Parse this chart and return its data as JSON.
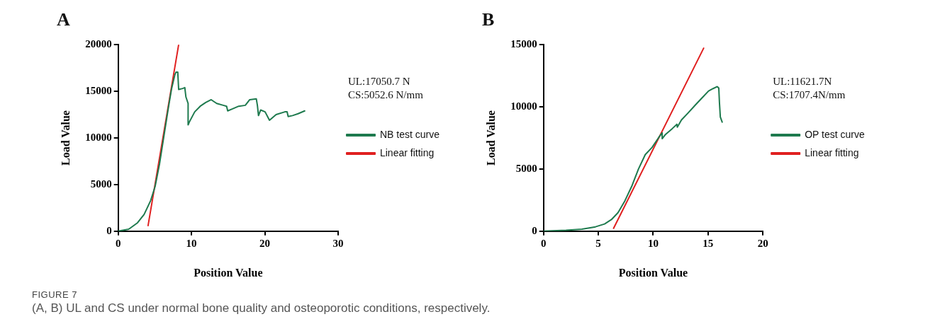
{
  "chart_data": [
    {
      "type": "line",
      "title": "A",
      "xlabel": "Position Value",
      "ylabel": "Load Value",
      "xlim": [
        0,
        30
      ],
      "xticks": [
        0,
        10,
        20,
        30
      ],
      "ylim": [
        0,
        20000
      ],
      "yticks": [
        0,
        5000,
        10000,
        15000,
        20000
      ],
      "legend": "right",
      "marker": "none",
      "grid": false,
      "annotations": [
        "UL:17050.7 N",
        "CS:5052.6 N/mm"
      ],
      "series": [
        {
          "name": "NB test curve",
          "color": "#1e7a4e",
          "x": [
            0,
            1.44,
            2.64,
            3.54,
            4.44,
            5.04,
            5.64,
            6.24,
            6.84,
            7.29,
            7.74,
            7.89,
            8.13,
            8.25,
            8.79,
            9.09,
            9.24,
            9.54,
            9.54,
            9.7,
            10.44,
            11.19,
            11.94,
            12.69,
            13.44,
            14.34,
            14.79,
            14.94,
            15.54,
            16.44,
            17.34,
            17.94,
            18.84,
            18.99,
            19.14,
            19.44,
            20.04,
            20.64,
            21.54,
            22.74,
            23.04,
            23.19,
            23.79,
            24.54,
            25.44
          ],
          "values": [
            0,
            210,
            900,
            1800,
            3300,
            4800,
            7200,
            10200,
            13200,
            15300,
            16800,
            17050,
            17050,
            15200,
            15300,
            15400,
            14400,
            13700,
            11400,
            11700,
            12800,
            13400,
            13800,
            14100,
            13700,
            13500,
            13400,
            12900,
            13100,
            13400,
            13500,
            14100,
            14200,
            13500,
            12400,
            13000,
            12800,
            11900,
            12500,
            12800,
            12800,
            12300,
            12400,
            12600,
            12900
          ]
        },
        {
          "name": "Linear fitting",
          "color": "#e02020",
          "type": "line",
          "x": [
            4.08,
            8.25
          ],
          "values": [
            600,
            20000
          ]
        }
      ]
    },
    {
      "type": "line",
      "title": "B",
      "xlabel": "Position Value",
      "ylabel": "Load Value",
      "xlim": [
        0,
        20
      ],
      "xticks": [
        0,
        5,
        10,
        15,
        20
      ],
      "ylim": [
        0,
        15000
      ],
      "yticks": [
        0,
        5000,
        10000,
        15000
      ],
      "legend": "right",
      "marker": "none",
      "grid": false,
      "annotations": [
        "UL:11621.7N",
        "CS:1707.4N/mm"
      ],
      "series": [
        {
          "name": "OP test curve",
          "color": "#1e7a4e",
          "x": [
            0,
            2.06,
            3.5,
            4.74,
            5.57,
            6.19,
            6.8,
            7.42,
            8.04,
            8.66,
            9.28,
            9.9,
            10.52,
            10.82,
            10.82,
            11.13,
            11.75,
            12.16,
            12.2,
            12.58,
            13.2,
            13.81,
            14.43,
            15.05,
            15.46,
            15.84,
            15.98,
            16.04,
            16.12,
            16.29
          ],
          "values": [
            0,
            70,
            160,
            350,
            580,
            930,
            1500,
            2440,
            3600,
            5000,
            6160,
            6740,
            7560,
            7900,
            7440,
            7790,
            8260,
            8600,
            8370,
            8950,
            9530,
            10120,
            10700,
            11280,
            11470,
            11630,
            11510,
            10350,
            9190,
            8770
          ]
        },
        {
          "name": "Linear fitting",
          "color": "#e02020",
          "type": "line",
          "x": [
            6.39,
            14.6
          ],
          "values": [
            230,
            14720
          ]
        }
      ]
    },
    {
      "type": "other",
      "title": "FIGURE 7",
      "annotations": [
        "(A, B) UL and CS under normal bone quality and osteoporotic conditions, respectively."
      ]
    }
  ]
}
